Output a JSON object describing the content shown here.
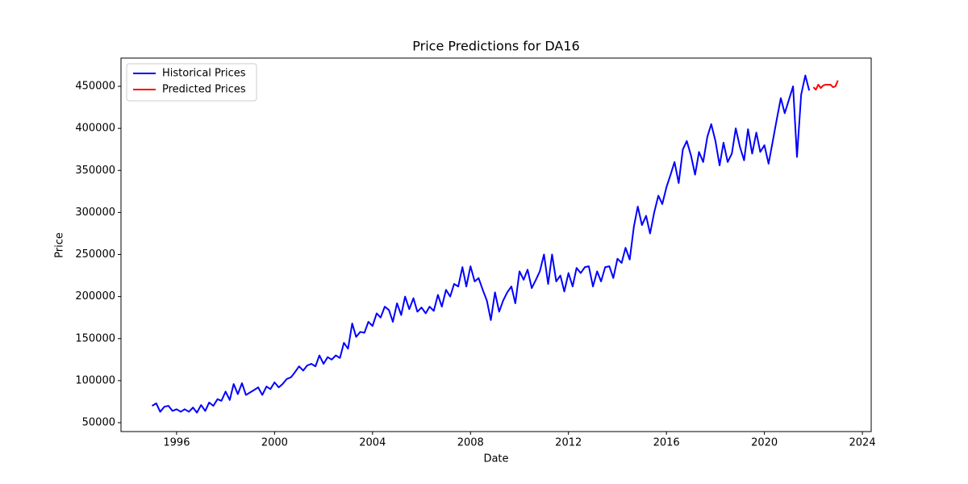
{
  "chart_data": {
    "type": "line",
    "title": "Price Predictions for DA16",
    "x_label": "Date",
    "y_label": "Price",
    "xlim": [
      1993.73,
      2024.36
    ],
    "xticks": [
      1996,
      2000,
      2004,
      2008,
      2012,
      2016,
      2020,
      2024
    ],
    "ylim": [
      39450,
      483600
    ],
    "yticks": [
      50000,
      100000,
      150000,
      200000,
      250000,
      300000,
      350000,
      400000,
      450000
    ],
    "grid": false,
    "legend": "upper-left",
    "series": [
      {
        "name": "Historical Prices",
        "color": "#0000ff",
        "x": [
          1995,
          1995.17,
          1995.33,
          1995.5,
          1995.67,
          1995.83,
          1996,
          1996.17,
          1996.33,
          1996.5,
          1996.67,
          1996.83,
          1997,
          1997.17,
          1997.33,
          1997.5,
          1997.67,
          1997.83,
          1998,
          1998.17,
          1998.33,
          1998.5,
          1998.67,
          1998.83,
          1999,
          1999.17,
          1999.33,
          1999.5,
          1999.67,
          1999.83,
          2000,
          2000.17,
          2000.33,
          2000.5,
          2000.67,
          2000.83,
          2001,
          2001.17,
          2001.33,
          2001.5,
          2001.67,
          2001.83,
          2002,
          2002.17,
          2002.33,
          2002.5,
          2002.67,
          2002.83,
          2003,
          2003.17,
          2003.33,
          2003.5,
          2003.67,
          2003.83,
          2004,
          2004.17,
          2004.33,
          2004.5,
          2004.67,
          2004.83,
          2005,
          2005.17,
          2005.33,
          2005.5,
          2005.67,
          2005.83,
          2006,
          2006.17,
          2006.33,
          2006.5,
          2006.67,
          2006.83,
          2007,
          2007.17,
          2007.33,
          2007.5,
          2007.67,
          2007.83,
          2008,
          2008.17,
          2008.33,
          2008.5,
          2008.67,
          2008.83,
          2009,
          2009.17,
          2009.33,
          2009.5,
          2009.67,
          2009.83,
          2010,
          2010.17,
          2010.33,
          2010.5,
          2010.67,
          2010.83,
          2011,
          2011.17,
          2011.33,
          2011.5,
          2011.67,
          2011.83,
          2012,
          2012.17,
          2012.33,
          2012.5,
          2012.67,
          2012.83,
          2013,
          2013.17,
          2013.33,
          2013.5,
          2013.67,
          2013.83,
          2014,
          2014.17,
          2014.33,
          2014.5,
          2014.67,
          2014.83,
          2015,
          2015.17,
          2015.33,
          2015.5,
          2015.67,
          2015.83,
          2016,
          2016.17,
          2016.33,
          2016.5,
          2016.67,
          2016.83,
          2017,
          2017.17,
          2017.33,
          2017.5,
          2017.67,
          2017.83,
          2018,
          2018.17,
          2018.33,
          2018.5,
          2018.67,
          2018.83,
          2019,
          2019.17,
          2019.33,
          2019.5,
          2019.67,
          2019.83,
          2020,
          2020.17,
          2020.33,
          2020.5,
          2020.67,
          2020.83,
          2021,
          2021.17,
          2021.33,
          2021.5,
          2021.67,
          2021.83
        ],
        "values": [
          70000,
          73000,
          63000,
          69000,
          70000,
          64000,
          66000,
          63000,
          66000,
          63000,
          68000,
          62000,
          71000,
          64000,
          74000,
          70000,
          78000,
          76000,
          87000,
          77000,
          96000,
          84000,
          97000,
          83000,
          86000,
          89000,
          92000,
          83000,
          93000,
          90000,
          98000,
          92000,
          96000,
          102000,
          104000,
          110000,
          117000,
          112000,
          118000,
          120000,
          117000,
          130000,
          120000,
          128000,
          125000,
          130000,
          127000,
          145000,
          138000,
          168000,
          152000,
          158000,
          157000,
          170000,
          165000,
          180000,
          175000,
          188000,
          184000,
          170000,
          192000,
          178000,
          200000,
          185000,
          198000,
          182000,
          187000,
          180000,
          188000,
          183000,
          202000,
          188000,
          208000,
          200000,
          215000,
          212000,
          235000,
          212000,
          236000,
          218000,
          222000,
          208000,
          195000,
          172000,
          205000,
          182000,
          195000,
          205000,
          212000,
          192000,
          230000,
          220000,
          232000,
          210000,
          220000,
          230000,
          250000,
          215000,
          250000,
          218000,
          225000,
          206000,
          228000,
          212000,
          234000,
          228000,
          235000,
          236000,
          212000,
          230000,
          218000,
          235000,
          236000,
          222000,
          245000,
          240000,
          258000,
          244000,
          283000,
          307000,
          285000,
          296000,
          275000,
          300000,
          320000,
          310000,
          330000,
          345000,
          360000,
          335000,
          375000,
          385000,
          368000,
          345000,
          372000,
          360000,
          390000,
          405000,
          385000,
          356000,
          383000,
          360000,
          370000,
          400000,
          378000,
          362000,
          399000,
          370000,
          395000,
          372000,
          380000,
          358000,
          383000,
          410000,
          436000,
          418000,
          434000,
          450000,
          366000,
          440000,
          463000,
          445000
        ]
      },
      {
        "name": "Predicted Prices",
        "color": "#ff0000",
        "x": [
          2022,
          2022.1,
          2022.2,
          2022.3,
          2022.4,
          2022.5,
          2022.6,
          2022.7,
          2022.8,
          2022.9,
          2023
        ],
        "values": [
          449000,
          446000,
          452000,
          448000,
          451000,
          452000,
          452000,
          452000,
          449000,
          450000,
          457000
        ]
      }
    ]
  }
}
